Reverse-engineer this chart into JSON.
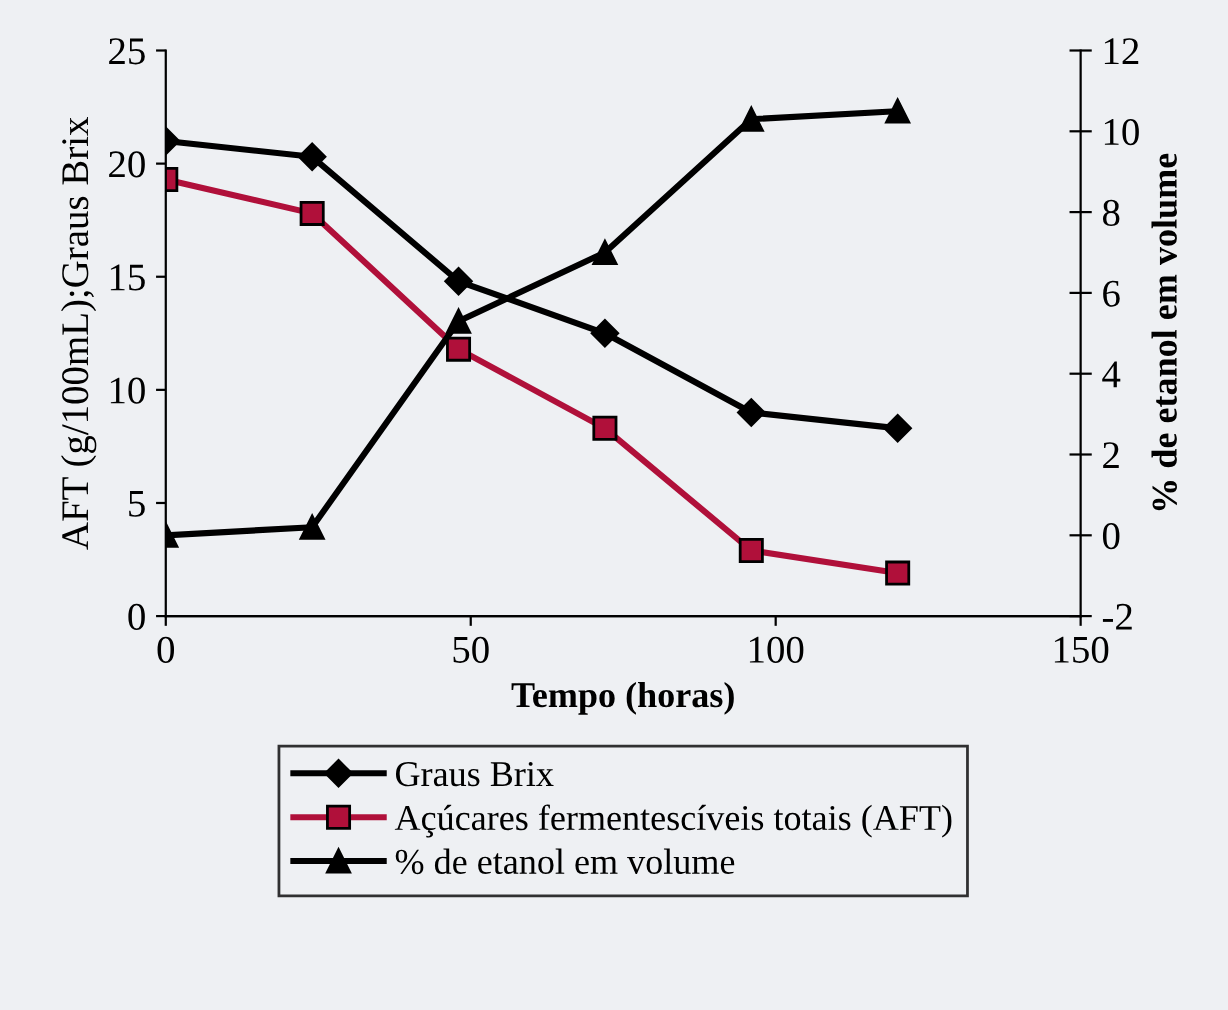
{
  "chart_data": {
    "type": "line",
    "xlabel": "Tempo (horas)",
    "ylabel": "AFT (g/100mL);Graus Brix",
    "y2label": "% de etanol em volume",
    "x": [
      0,
      24,
      48,
      72,
      96,
      120
    ],
    "series": [
      {
        "name": "Graus Brix",
        "color": "#000000",
        "marker": "diamond",
        "values": [
          21,
          20.3,
          14.8,
          12.5,
          9,
          8.3
        ]
      },
      {
        "name": "Açúcares fermentescíveis totais (AFT)",
        "color": "#b0103a",
        "marker": "square",
        "values": [
          19.3,
          17.8,
          11.8,
          8.3,
          2.9,
          1.9
        ]
      },
      {
        "name": "% de etanol em volume",
        "color": "#000000",
        "marker": "triangle",
        "axis": "y2",
        "values": [
          0,
          0.2,
          5.3,
          7,
          10.3,
          10.5
        ]
      }
    ],
    "xlim": [
      0,
      150
    ],
    "xticks": [
      0,
      50,
      100,
      150
    ],
    "ylim": [
      0,
      25
    ],
    "yticks": [
      0,
      5,
      10,
      15,
      20,
      25
    ],
    "y2lim": [
      -2,
      12
    ],
    "y2ticks": [
      -2,
      0,
      2,
      4,
      6,
      8,
      10,
      12
    ],
    "grid": false,
    "legend": "bottom",
    "line_style": "solid"
  }
}
